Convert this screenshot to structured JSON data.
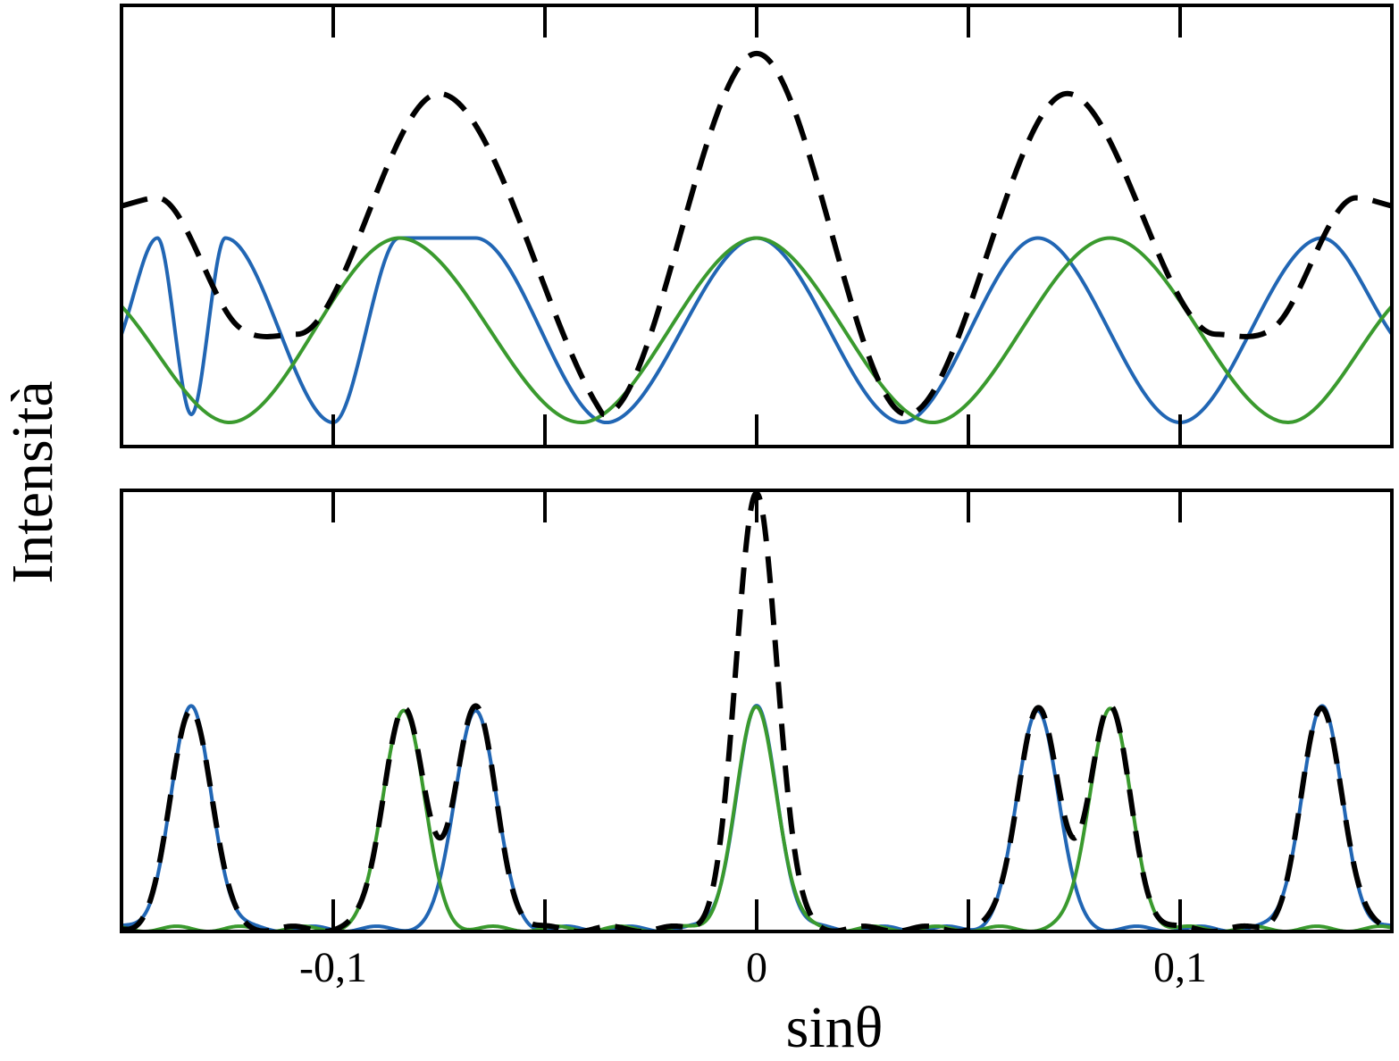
{
  "chart_data": [
    {
      "type": "line",
      "panel": "top",
      "title": "",
      "xlabel": "",
      "ylabel": "Intensità",
      "xlim": [
        -0.15,
        0.15
      ],
      "ylim": [
        0,
        1.1
      ],
      "x_ticks": [
        -0.1,
        -0.05,
        0,
        0.05,
        0.1
      ],
      "x_tick_labels": [],
      "y_ticks": [],
      "grid": false,
      "legend": "none",
      "series": [
        {
          "color": "#2166b4",
          "style": "solid",
          "points": [
            [
              -0.15,
              0.28
            ],
            [
              -0.1415,
              0.52
            ],
            [
              -0.1335,
              0.08
            ],
            [
              -0.1255,
              0.52
            ],
            [
              -0.1,
              0.06
            ],
            [
              -0.0844,
              0.52
            ],
            [
              -0.0664,
              0.52
            ],
            [
              -0.0355,
              0.06
            ],
            [
              0,
              0.52
            ],
            [
              0.0344,
              0.06
            ],
            [
              0.0664,
              0.52
            ],
            [
              0.1,
              0.06
            ],
            [
              0.1335,
              0.52
            ],
            [
              0.15,
              0.28
            ]
          ]
        },
        {
          "color": "#3a9a2e",
          "style": "solid",
          "points": [
            [
              -0.15,
              0.35
            ],
            [
              -0.1245,
              0.06
            ],
            [
              -0.0844,
              0.52
            ],
            [
              -0.0415,
              0.06
            ],
            [
              0,
              0.52
            ],
            [
              0.0415,
              0.06
            ],
            [
              0.0834,
              0.52
            ],
            [
              0.1255,
              0.06
            ],
            [
              0.15,
              0.35
            ]
          ]
        },
        {
          "color": "#000000",
          "style": "dashed",
          "points": [
            [
              -0.15,
              0.6
            ],
            [
              -0.1415,
              0.62
            ],
            [
              -0.1225,
              0.3
            ],
            [
              -0.1085,
              0.28
            ],
            [
              -0.075,
              0.88
            ],
            [
              -0.0375,
              0.1
            ],
            [
              -0.036,
              0.08
            ],
            [
              0,
              0.98
            ],
            [
              0.0355,
              0.08
            ],
            [
              0.0734,
              0.88
            ],
            [
              0.1085,
              0.28
            ],
            [
              0.1225,
              0.3
            ],
            [
              0.1415,
              0.62
            ],
            [
              0.15,
              0.6
            ]
          ]
        }
      ]
    },
    {
      "type": "line",
      "panel": "bottom",
      "title": "",
      "xlabel": "sinθ",
      "ylabel": "Intensità",
      "xlim": [
        -0.15,
        0.15
      ],
      "ylim": [
        0,
        1
      ],
      "x_ticks": [
        -0.1,
        -0.05,
        0,
        0.05,
        0.1
      ],
      "x_tick_labels": [
        "-0,1",
        "0",
        "0,1"
      ],
      "y_ticks": [],
      "grid": false,
      "legend": "none",
      "series": [
        {
          "color": "#2166b4",
          "style": "solid",
          "peaks": [
            [
              -0.1335,
              0.5
            ],
            [
              -0.0664,
              0.5
            ],
            [
              0,
              0.5
            ],
            [
              0.0664,
              0.5
            ],
            [
              0.1335,
              0.5
            ]
          ],
          "peak_width": 0.0048
        },
        {
          "color": "#3a9a2e",
          "style": "solid",
          "peaks": [
            [
              -0.0834,
              0.5
            ],
            [
              0,
              0.5
            ],
            [
              0.0834,
              0.5
            ]
          ],
          "peak_width": 0.0048
        },
        {
          "color": "#000000",
          "style": "dashed",
          "peaks": [
            [
              -0.1335,
              0.5
            ],
            [
              -0.0834,
              0.5
            ],
            [
              -0.0664,
              0.5
            ],
            [
              0,
              0.99
            ],
            [
              0.0664,
              0.5
            ],
            [
              0.0834,
              0.5
            ],
            [
              0.1335,
              0.5
            ]
          ],
          "peak_width": 0.0048
        }
      ]
    }
  ]
}
